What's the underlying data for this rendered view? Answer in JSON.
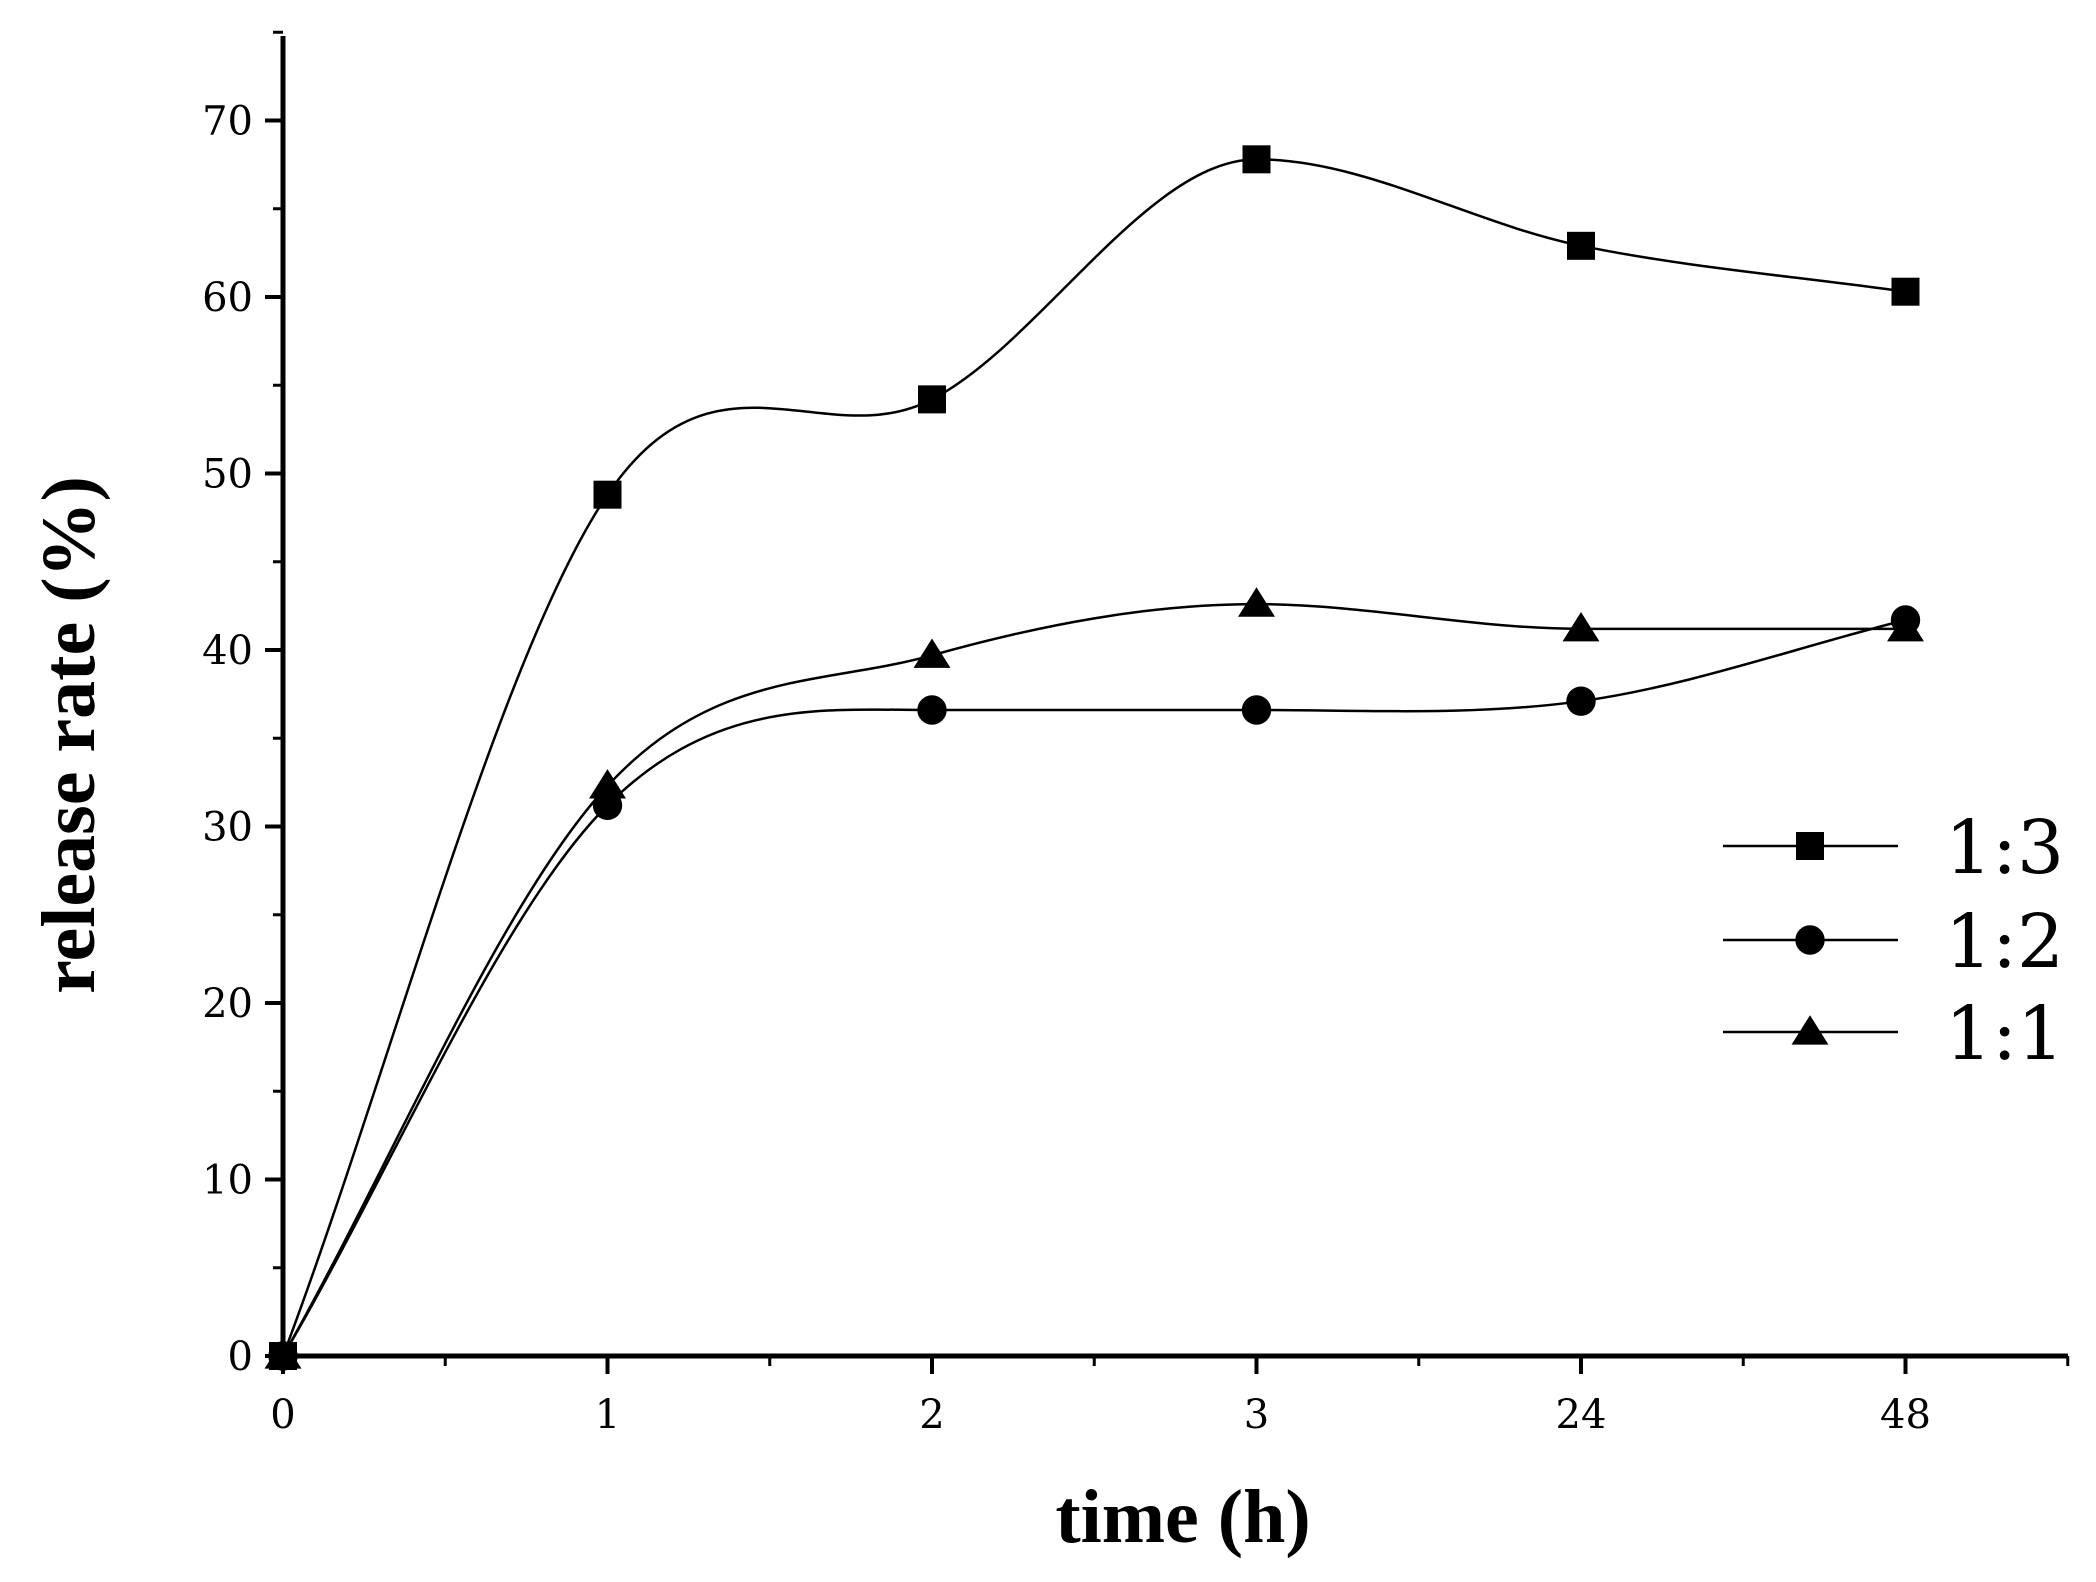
{
  "chart_data": {
    "type": "line",
    "title": "",
    "xlabel": "time (h)",
    "ylabel": "release rate (%)",
    "categories": [
      "0",
      "1",
      "2",
      "3",
      "24",
      "48"
    ],
    "ylim": [
      0,
      75
    ],
    "yticks": [
      0,
      10,
      20,
      30,
      40,
      50,
      60,
      70
    ],
    "grid": false,
    "legend_position": "right",
    "series": [
      {
        "name": "1:3",
        "marker": "square",
        "values": [
          0,
          48.8,
          54.2,
          67.8,
          62.9,
          60.3
        ]
      },
      {
        "name": "1:2",
        "marker": "circle",
        "values": [
          0,
          31.2,
          36.6,
          36.6,
          37.1,
          41.7
        ]
      },
      {
        "name": "1:1",
        "marker": "triangle",
        "values": [
          0,
          32.3,
          39.7,
          42.6,
          41.2,
          41.2
        ]
      }
    ],
    "colors": {
      "line": "#000000",
      "marker": "#000000",
      "background": "#ffffff"
    }
  }
}
